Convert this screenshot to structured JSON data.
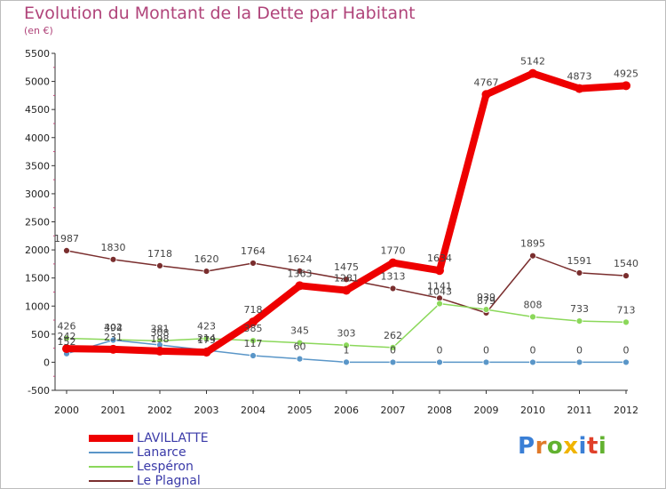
{
  "title": "Evolution du Montant de la Dette par Habitant",
  "subtitle": "(en €)",
  "brand": {
    "text": "Proxiti",
    "letter_colors": [
      "#3a7fd6",
      "#e07a2a",
      "#62b230",
      "#f0b400",
      "#3a7fd6",
      "#e0402a",
      "#62b230"
    ]
  },
  "chart_data": {
    "type": "line",
    "x": [
      "2000",
      "2001",
      "2002",
      "2003",
      "2004",
      "2005",
      "2006",
      "2007",
      "2008",
      "2009",
      "2010",
      "2011",
      "2012"
    ],
    "ylim": [
      -500,
      5500
    ],
    "yticks": [
      "-500",
      "0",
      "500",
      "1000",
      "1500",
      "2000",
      "2500",
      "3000",
      "3500",
      "4000",
      "4500",
      "5000",
      "5500"
    ],
    "grid": false,
    "legend_position": "bottom-left",
    "series": [
      {
        "name": "LAVILLATTE",
        "color": "#ee0000",
        "values": [
          242,
          231,
          198,
          179,
          718,
          1363,
          1281,
          1770,
          1634,
          4767,
          5142,
          4873,
          4925
        ],
        "labels": [
          "242",
          "231",
          "198",
          "179",
          "718",
          "1363",
          "1281",
          "1770",
          "1634",
          "4767",
          "5142",
          "4873",
          "4925"
        ]
      },
      {
        "name": "Lanarce",
        "color": "#5a96c8",
        "values": [
          152,
          394,
          308,
          214,
          117,
          60,
          1,
          0,
          0,
          0,
          0,
          0,
          0
        ],
        "labels": [
          "152",
          "394",
          "308",
          "214",
          "117",
          "60",
          "1",
          "0",
          "0",
          "0",
          "0",
          "0",
          "0"
        ]
      },
      {
        "name": "Lespéron",
        "color": "#8bd85a",
        "values": [
          426,
          402,
          381,
          423,
          385,
          345,
          303,
          262,
          1043,
          939,
          808,
          733,
          713
        ],
        "labels": [
          "426",
          "402",
          "381",
          "423",
          "385",
          "345",
          "303",
          "262",
          "1043",
          "939",
          "808",
          "733",
          "713"
        ]
      },
      {
        "name": "Le Plagnal",
        "color": "#7a2e2e",
        "values": [
          1987,
          1830,
          1718,
          1620,
          1764,
          1624,
          1475,
          1313,
          1141,
          879,
          1895,
          1591,
          1540
        ],
        "labels": [
          "1987",
          "1830",
          "1718",
          "1620",
          "1764",
          "1624",
          "1475",
          "1313",
          "1141",
          "879",
          "1895",
          "1591",
          "1540"
        ]
      }
    ]
  }
}
